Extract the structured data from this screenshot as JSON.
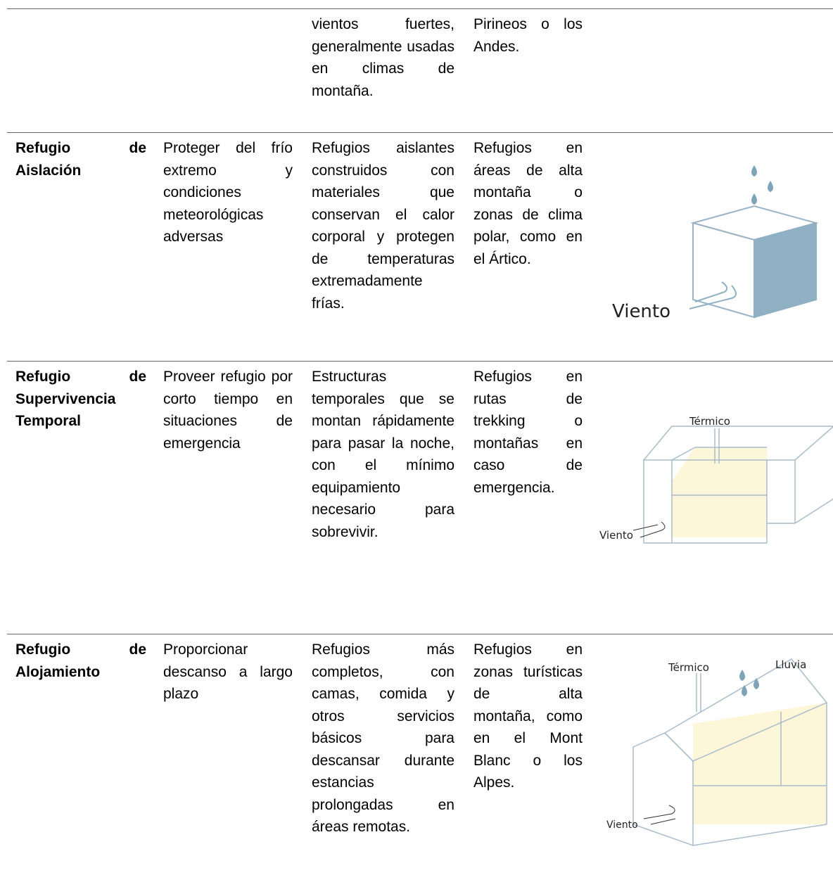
{
  "table": {
    "rows": [
      {
        "description": "vientos fuertes, generalmente usadas en climas de montaña.",
        "location": "Pirineos o los Andes."
      },
      {
        "name": "Refugio de Aislación",
        "purpose": "Proteger del frío extremo y condiciones meteorológicas adversas",
        "description": "Refugios aislantes construidos con materiales que conservan el calor corporal y protegen de temperaturas extremadamente frías.",
        "location": "Refugios en áreas de alta montaña o zonas de clima polar, como en el Ártico.",
        "figure_labels": [
          "Viento"
        ]
      },
      {
        "name": "Refugio de Supervivencia Temporal",
        "purpose": "Proveer refugio por corto tiempo en situaciones de emergencia",
        "description": "Estructuras temporales que se montan rápidamente para pasar la noche, con el mínimo equipamiento necesario para sobrevivir.",
        "location": "Refugios en rutas de trekking o montañas en caso de emergencia.",
        "figure_labels": [
          "Térmico",
          "Viento"
        ]
      },
      {
        "name": "Refugio de Alojamiento",
        "purpose": "Proporcionar descanso a largo plazo",
        "description": "Refugios más completos, con camas, comida y otros servicios básicos para descansar durante estancias prolongadas en áreas remotas.",
        "location": "Refugios en zonas turísticas de alta montaña, como en el Mont Blanc o los Alpes.",
        "figure_labels": [
          "Térmico",
          "Lluvia",
          "Viento"
        ]
      }
    ]
  }
}
